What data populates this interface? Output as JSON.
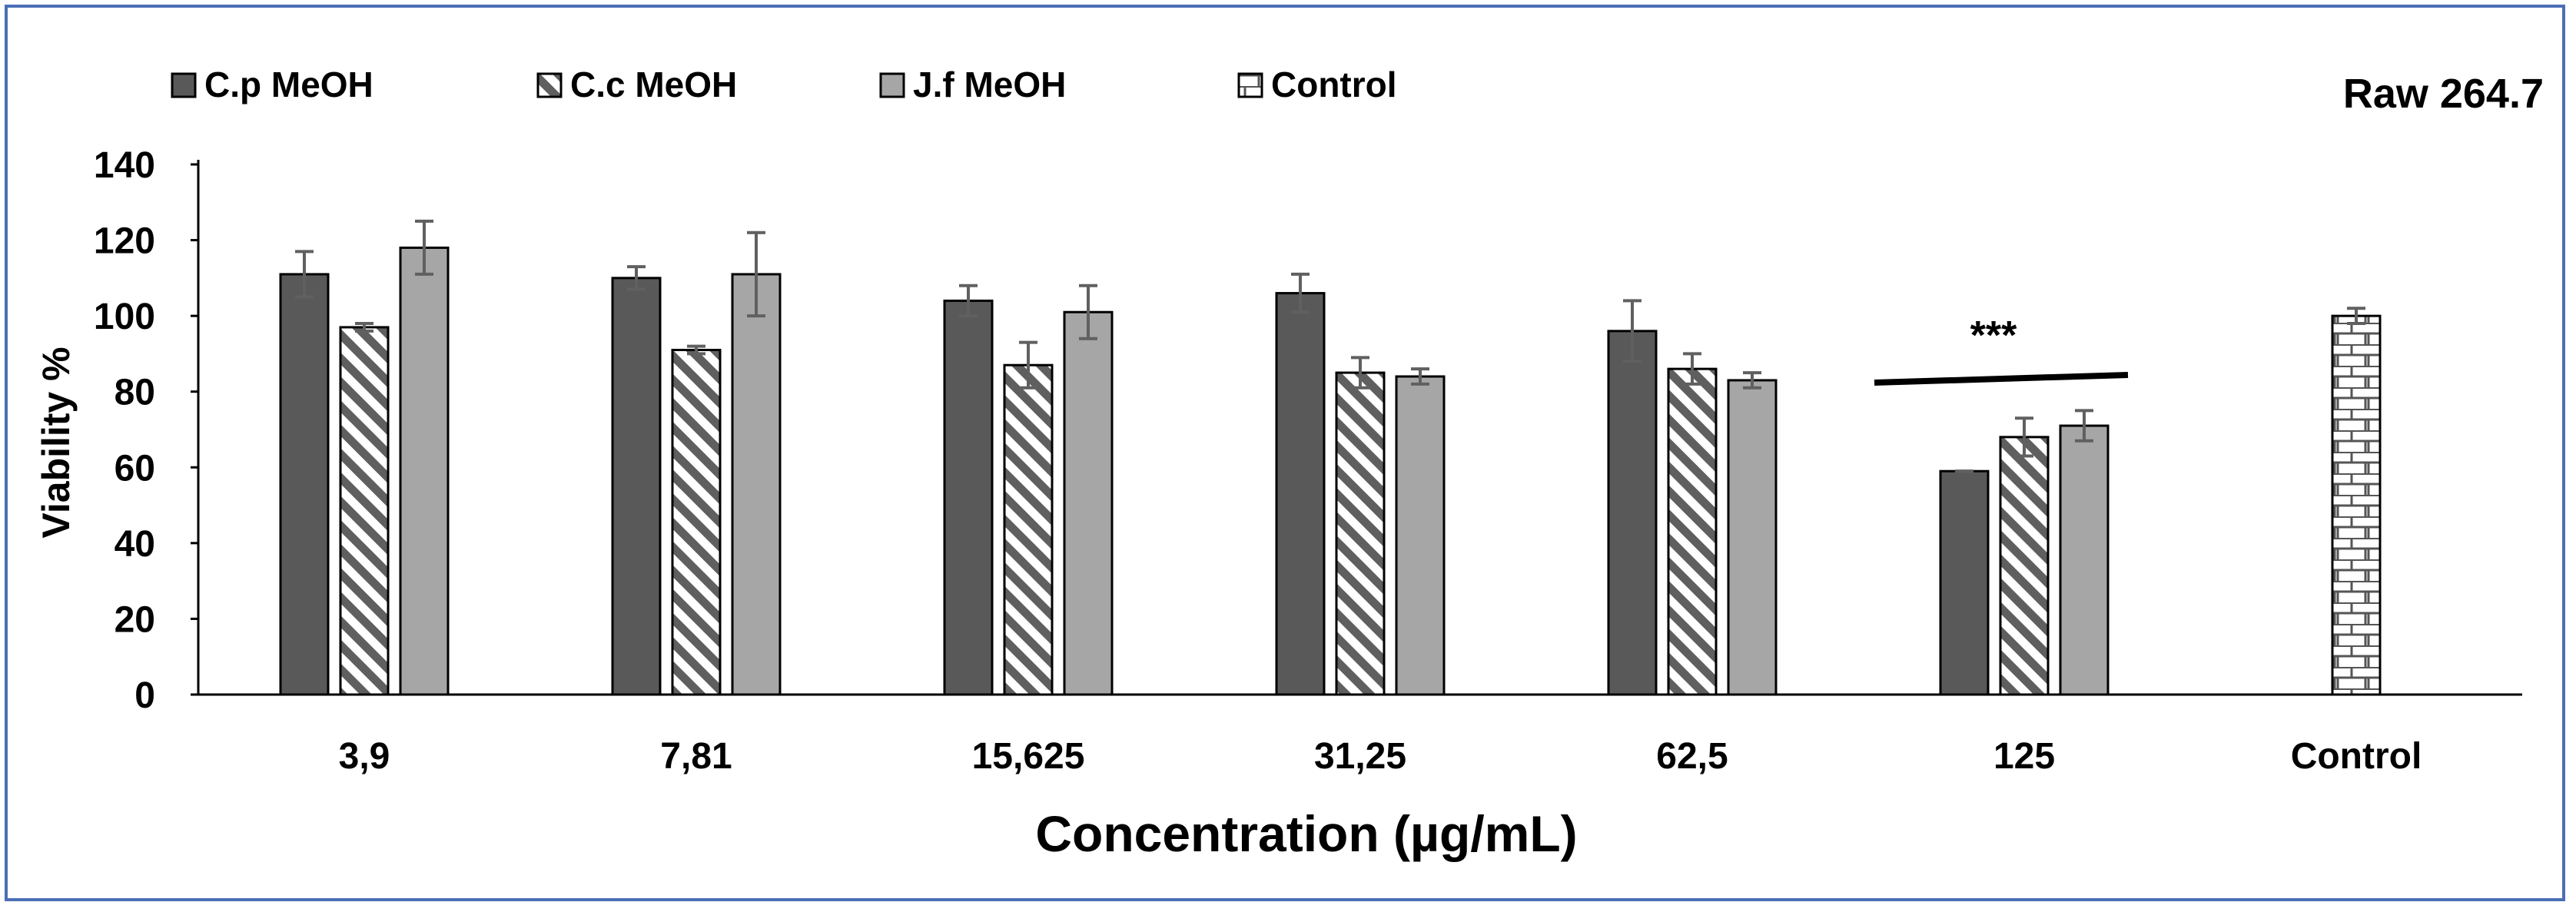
{
  "chart_data": {
    "type": "bar",
    "title": "Raw 264.7",
    "xlabel": "Concentration (µg/mL)",
    "ylabel": "Viability %",
    "ylim": [
      0,
      140
    ],
    "yticks": [
      0,
      20,
      40,
      60,
      80,
      100,
      120,
      140
    ],
    "categories": [
      "3,9",
      "7,81",
      "15,625",
      "31,25",
      "62,5",
      "125",
      "Control"
    ],
    "series": [
      {
        "name": "C.p MeOH",
        "pattern": "solid-dark",
        "color": "#595959",
        "values": [
          111,
          110,
          104,
          106,
          96,
          59,
          null
        ],
        "errors": [
          6,
          3,
          4,
          5,
          8,
          0,
          null
        ]
      },
      {
        "name": "C.c MeOH",
        "pattern": "diagonal-stripes",
        "color": "#5f5f5f",
        "values": [
          97,
          91,
          87,
          85,
          86,
          68,
          null
        ],
        "errors": [
          1,
          1,
          6,
          4,
          4,
          5,
          null
        ]
      },
      {
        "name": "J.f MeOH",
        "pattern": "solid-light",
        "color": "#a6a6a6",
        "values": [
          118,
          111,
          101,
          84,
          83,
          71,
          null
        ],
        "errors": [
          7,
          11,
          7,
          2,
          2,
          4,
          null
        ]
      },
      {
        "name": "Control",
        "pattern": "brick",
        "color": "#595959",
        "values": [
          null,
          null,
          null,
          null,
          null,
          null,
          100
        ],
        "errors": [
          null,
          null,
          null,
          null,
          null,
          null,
          2
        ]
      }
    ],
    "annotations": [
      {
        "text": "***",
        "category": "125",
        "y": 84
      }
    ]
  }
}
